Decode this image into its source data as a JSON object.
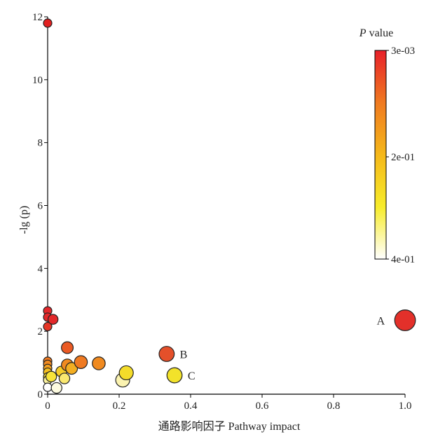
{
  "chart_data": {
    "type": "scatter",
    "xlabel": "通路影响因子 Pathway impact",
    "ylabel": "-lg (p)",
    "xlim": [
      0,
      1.0
    ],
    "ylim": [
      0,
      12
    ],
    "x_ticks": [
      0,
      0.2,
      0.4,
      0.6,
      0.8,
      1.0
    ],
    "y_ticks": [
      0,
      2,
      4,
      6,
      8,
      10,
      12
    ],
    "x_tick_labels": [
      "0",
      "0.2",
      "0.4",
      "0.6",
      "0.8",
      "1.0"
    ],
    "y_tick_labels": [
      "0",
      "2",
      "4",
      "6",
      "8",
      "10",
      "12"
    ],
    "colorbar": {
      "title_italic": "P",
      "title_rest": " value",
      "tick_labels": [
        "3e-03",
        "2e-01",
        "4e-01"
      ],
      "colors": [
        "#e8202a",
        "#f07a20",
        "#f5b81a",
        "#f7ec2a",
        "#ffffff"
      ]
    },
    "points": [
      {
        "x": 0.0,
        "y": 11.8,
        "size": 2.5,
        "color": "#e02020"
      },
      {
        "x": 0.0,
        "y": 2.65,
        "size": 2.5,
        "color": "#e3272a"
      },
      {
        "x": 0.0,
        "y": 2.45,
        "size": 2.5,
        "color": "#e3282a"
      },
      {
        "x": 0.0,
        "y": 2.15,
        "size": 2.5,
        "color": "#e63525"
      },
      {
        "x": 0.015,
        "y": 2.38,
        "size": 3.2,
        "color": "#e3282a"
      },
      {
        "x": 0.0,
        "y": 1.05,
        "size": 2.5,
        "color": "#f07a20"
      },
      {
        "x": 0.0,
        "y": 0.95,
        "size": 2.5,
        "color": "#f08a20"
      },
      {
        "x": 0.0,
        "y": 0.82,
        "size": 2.5,
        "color": "#f2a020"
      },
      {
        "x": 0.0,
        "y": 0.7,
        "size": 2.5,
        "color": "#f5c020"
      },
      {
        "x": 0.0,
        "y": 0.55,
        "size": 2.5,
        "color": "#f6dc30"
      },
      {
        "x": 0.0,
        "y": 0.45,
        "size": 2.5,
        "color": "#fbf3a0"
      },
      {
        "x": 0.0,
        "y": 0.22,
        "size": 2.5,
        "color": "#ffffff"
      },
      {
        "x": 0.01,
        "y": 0.56,
        "size": 3.5,
        "color": "#f7e43a"
      },
      {
        "x": 0.025,
        "y": 0.2,
        "size": 3.5,
        "color": "#fdfbe0"
      },
      {
        "x": 0.038,
        "y": 0.72,
        "size": 3.5,
        "color": "#f5cc2a"
      },
      {
        "x": 0.047,
        "y": 0.5,
        "size": 3.5,
        "color": "#fae870"
      },
      {
        "x": 0.055,
        "y": 1.48,
        "size": 4.0,
        "color": "#ea5a24"
      },
      {
        "x": 0.055,
        "y": 0.93,
        "size": 4.0,
        "color": "#f08a20"
      },
      {
        "x": 0.067,
        "y": 0.82,
        "size": 4.0,
        "color": "#f3ae22"
      },
      {
        "x": 0.093,
        "y": 1.02,
        "size": 4.5,
        "color": "#ef7a22"
      },
      {
        "x": 0.143,
        "y": 0.98,
        "size": 4.5,
        "color": "#f08a20"
      },
      {
        "x": 0.21,
        "y": 0.45,
        "size": 5.0,
        "color": "#fbf3b0"
      },
      {
        "x": 0.22,
        "y": 0.68,
        "size": 5.0,
        "color": "#f4dc2a"
      },
      {
        "x": 0.333,
        "y": 1.28,
        "size": 5.5,
        "color": "#e4502a",
        "label": "B"
      },
      {
        "x": 0.355,
        "y": 0.6,
        "size": 5.5,
        "color": "#f2e22a",
        "label": "C"
      },
      {
        "x": 1.0,
        "y": 2.35,
        "size": 8.0,
        "color": "#e3302a",
        "label": "A"
      }
    ]
  }
}
